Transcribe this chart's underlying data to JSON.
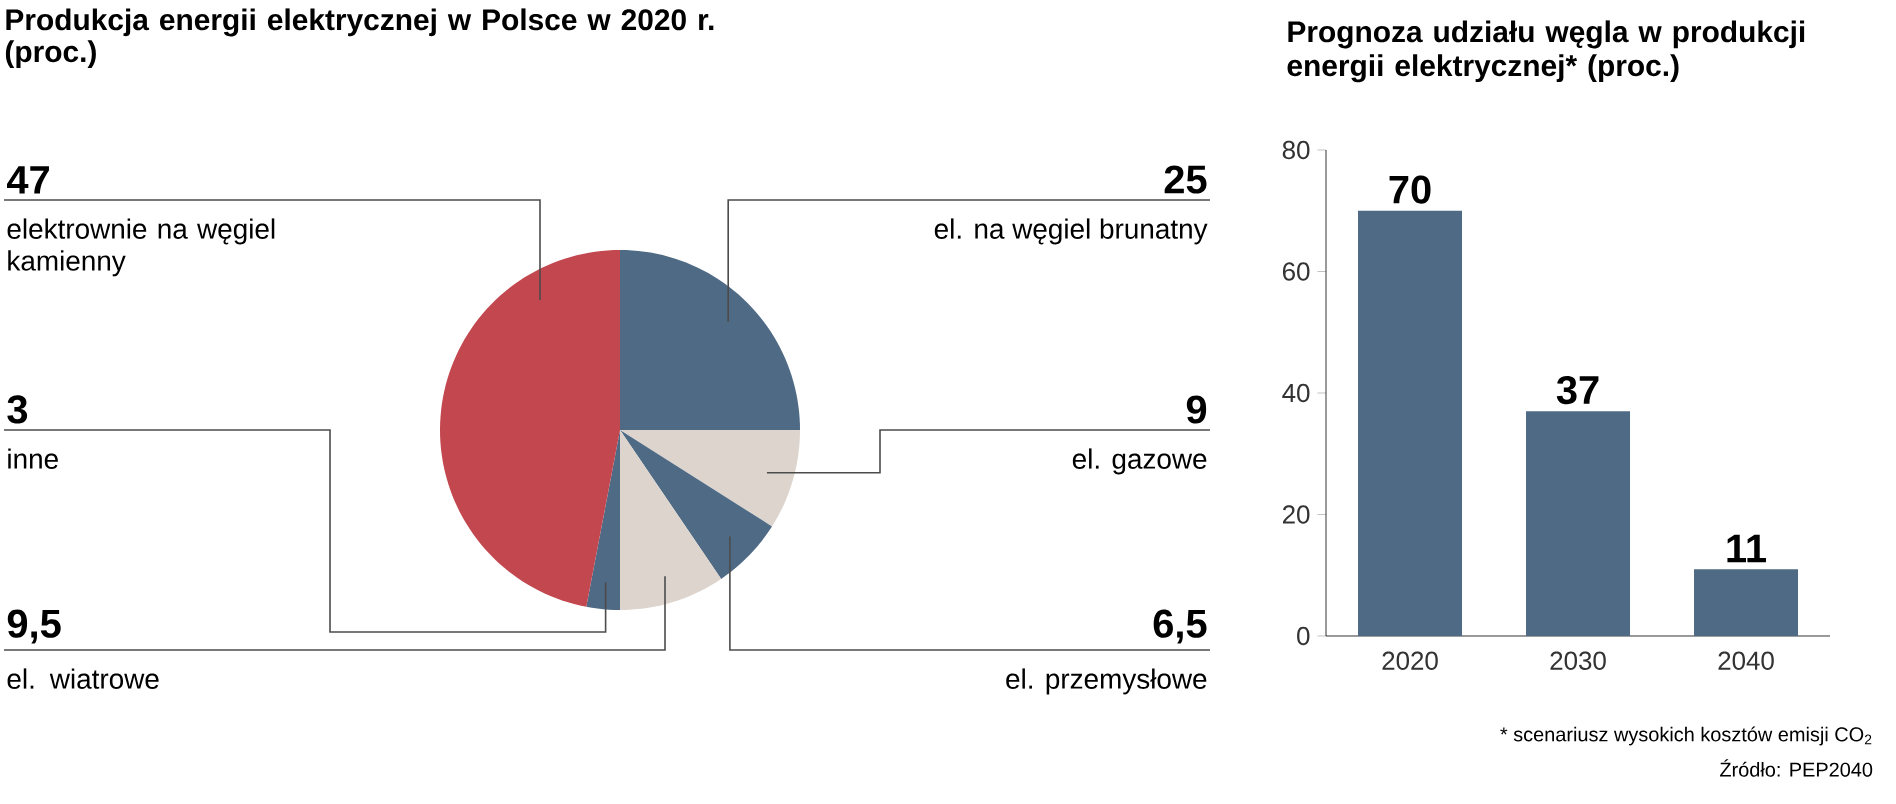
{
  "chart_data": [
    {
      "type": "pie",
      "title": "Produkcja energii elektrycznej w Polsce w 2020 r. (proc.)",
      "categories": [
        "el. na węgiel brunatny",
        "el. gazowe",
        "el. przemysłowe",
        "el. wiatrowe",
        "inne",
        "elektrownie na węgiel kamienny"
      ],
      "values": [
        25,
        9,
        6.5,
        9.5,
        3,
        47
      ],
      "value_labels": [
        "25",
        "9",
        "6,5",
        "9,5",
        "3",
        "47"
      ],
      "colors": [
        "#4f6a85",
        "#ddd5cd",
        "#4f6a85",
        "#ddd5cd",
        "#4f6a85",
        "#c2474f"
      ]
    },
    {
      "type": "bar",
      "title": "Prognoza udziału węgla w produkcji energii elektrycznej* (proc.)",
      "categories": [
        "2020",
        "2030",
        "2040"
      ],
      "values": [
        70,
        37,
        11
      ],
      "color": "#4f6a85",
      "ylim": [
        0,
        80
      ],
      "yticks": [
        0,
        20,
        40,
        60,
        80
      ],
      "data_labels": true,
      "annotations": [
        "* scenariusz wysokich kosztów emisji CO$_{2}$",
        "Źródło: PEP2040"
      ]
    }
  ]
}
